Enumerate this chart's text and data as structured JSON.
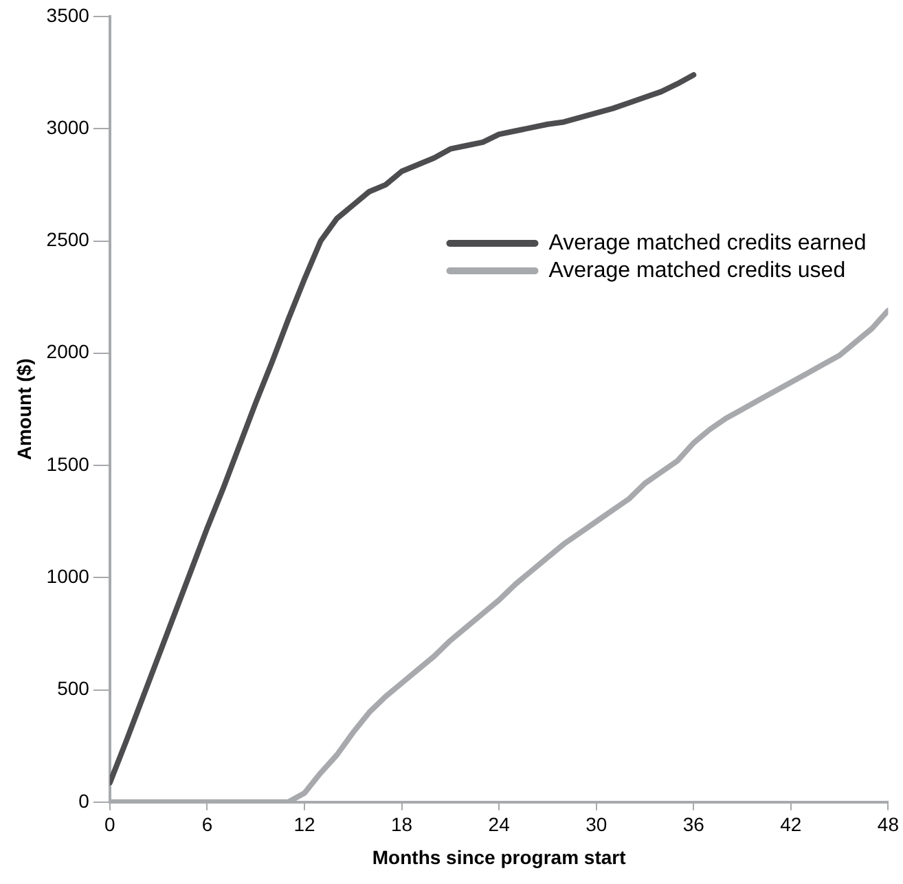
{
  "chart_data": {
    "type": "line",
    "xlabel": "Months since program start",
    "ylabel": "Amount ($)",
    "x": [
      0,
      1,
      2,
      3,
      4,
      5,
      6,
      7,
      8,
      9,
      10,
      11,
      12,
      13,
      14,
      15,
      16,
      17,
      18,
      19,
      20,
      21,
      22,
      23,
      24,
      25,
      26,
      27,
      28,
      29,
      30,
      31,
      32,
      33,
      34,
      35,
      36,
      37,
      38,
      39,
      40,
      41,
      42,
      43,
      44,
      45,
      46,
      47,
      48
    ],
    "series": [
      {
        "name": "Average matched credits earned",
        "color": "#4d4d4f",
        "values": [
          86,
          270,
          460,
          650,
          840,
          1030,
          1220,
          1400,
          1590,
          1780,
          1960,
          2150,
          2330,
          2500,
          2600,
          2660,
          2720,
          2750,
          2810,
          2840,
          2870,
          2910,
          2925,
          2940,
          2975,
          2990,
          3005,
          3020,
          3030,
          3050,
          3070,
          3090,
          3115,
          3140,
          3165,
          3200,
          3240,
          null,
          null,
          null,
          null,
          null,
          null,
          null,
          null,
          null,
          null,
          null,
          null
        ]
      },
      {
        "name": "Average matched credits used",
        "color": "#a7a9ac",
        "values": [
          0,
          0,
          0,
          0,
          0,
          0,
          0,
          0,
          0,
          0,
          0,
          0,
          40,
          130,
          210,
          310,
          400,
          470,
          530,
          590,
          650,
          720,
          780,
          840,
          900,
          970,
          1030,
          1090,
          1150,
          1200,
          1250,
          1300,
          1350,
          1420,
          1470,
          1520,
          1600,
          1660,
          1710,
          1750,
          1790,
          1830,
          1870,
          1910,
          1950,
          1990,
          2050,
          2110,
          2190
        ]
      }
    ],
    "xlim": [
      0,
      48
    ],
    "xticks": [
      0,
      6,
      12,
      18,
      24,
      30,
      36,
      42,
      48
    ],
    "ylim": [
      0,
      3500
    ],
    "yticks": [
      0,
      500,
      1000,
      1500,
      2000,
      2500,
      3000,
      3500
    ],
    "grid": false,
    "legend": "top right",
    "marker": "none",
    "line_style": "solid"
  }
}
